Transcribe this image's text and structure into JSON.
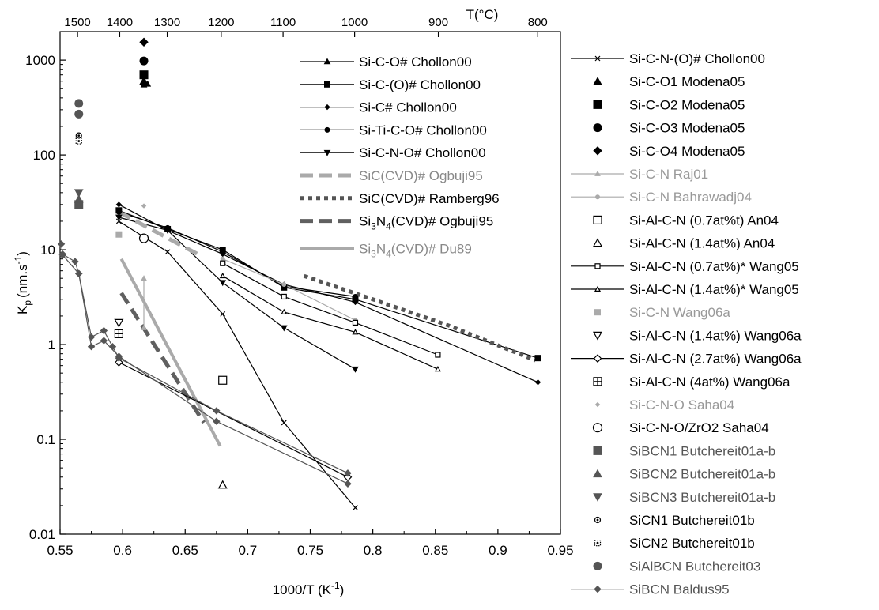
{
  "chart_data": {
    "type": "scatter",
    "xlabel": "1000/T (K",
    "xlabel_sup": "-1",
    "xlabel_end": ")",
    "ylabel": "K",
    "ylabel_sub": "p",
    "ylabel_unit": "(nm.s",
    "ylabel_unit_sup": "-1",
    "ylabel_end": ")",
    "top_axis_title": "T(°C)",
    "xlim": [
      0.55,
      0.95
    ],
    "ylim": [
      0.01,
      2000
    ],
    "yscale": "log",
    "x_ticks": [
      0.55,
      0.6,
      0.65,
      0.7,
      0.75,
      0.8,
      0.85,
      0.9,
      0.95
    ],
    "x_tick_labels": [
      "0.55",
      "0.6",
      "0.65",
      "0.7",
      "0.75",
      "0.8",
      "0.85",
      "0.9",
      "0.95"
    ],
    "y_ticks": [
      0.01,
      0.1,
      1,
      10,
      100,
      1000
    ],
    "y_tick_labels": [
      "0.01",
      "0.1",
      "1",
      "10",
      "100",
      "1000"
    ],
    "top_ticks": [
      1500,
      1400,
      1300,
      1200,
      1100,
      1000,
      900,
      800
    ],
    "top_tick_labels": [
      "1500",
      "1400",
      "1300",
      "1200",
      "1100",
      "1000",
      "900",
      "800"
    ],
    "series": [
      {
        "legend": "inner",
        "label": "Si-C-O# Chollon00",
        "color": "#000000",
        "marker": "tri",
        "msize": 7,
        "line": "solid",
        "lw": 1.2,
        "x": [
          0.617,
          0.62
        ],
        "y": [
          550,
          560
        ]
      },
      {
        "legend": "inner",
        "label": "Si-C-(O)# Chollon00",
        "color": "#000000",
        "marker": "square",
        "msize": 7,
        "line": "solid",
        "lw": 1.2,
        "x": [
          0.597,
          0.636,
          0.68,
          0.729,
          0.786,
          0.932
        ],
        "y": [
          26,
          16.5,
          10,
          4,
          3,
          0.72
        ]
      },
      {
        "legend": "inner",
        "label": "Si-C# Chollon00",
        "color": "#000000",
        "marker": "diamond",
        "msize": 6,
        "line": "solid",
        "lw": 1.2,
        "x": [
          0.597,
          0.636,
          0.68,
          0.729,
          0.786,
          0.932
        ],
        "y": [
          30,
          16,
          9,
          4.3,
          2.8,
          0.4
        ]
      },
      {
        "legend": "inner",
        "label": "Si-Ti-C-O# Chollon00",
        "color": "#000000",
        "marker": "circle",
        "msize": 6,
        "line": "solid",
        "lw": 1.2,
        "x": [
          0.597,
          0.636,
          0.68,
          0.729,
          0.786
        ],
        "y": [
          25,
          17,
          9.5,
          4.1,
          3.2
        ]
      },
      {
        "legend": "inner",
        "label": "Si-C-N-O# Chollon00",
        "color": "#000000",
        "marker": "dtri",
        "msize": 7,
        "line": "solid",
        "lw": 1.2,
        "x": [
          0.597,
          0.636,
          0.68,
          0.729,
          0.786
        ],
        "y": [
          22,
          16,
          4.5,
          1.5,
          0.55
        ]
      },
      {
        "legend": "inner",
        "label": "SiC(CVD)# Ogbuji95",
        "color": "#aaaaaa",
        "marker": "none",
        "line": "dash",
        "lw": 5,
        "text_color": "#888888",
        "x": [
          0.597,
          0.66
        ],
        "y": [
          25,
          9
        ]
      },
      {
        "legend": "inner",
        "label": "SiC(CVD)# Ramberg96",
        "color": "#555555",
        "marker": "none",
        "line": "dot",
        "lw": 5,
        "text_color": "#000000",
        "x": [
          0.745,
          0.8,
          0.86,
          0.93
        ],
        "y": [
          5.3,
          3.0,
          1.6,
          0.68
        ]
      },
      {
        "legend": "inner",
        "label": "Si3N4(CVD)# Ogbuji95",
        "label_parts": [
          "Si",
          "3",
          "N",
          "4",
          "(CVD)# Ogbuji95"
        ],
        "color": "#606060",
        "marker": "none",
        "line": "dash",
        "lw": 5,
        "text_color": "#000000",
        "x": [
          0.599,
          0.665
        ],
        "y": [
          3.5,
          0.15
        ]
      },
      {
        "legend": "inner",
        "label": "Si3N4(CVD)# Du89",
        "label_parts": [
          "Si",
          "3",
          "N",
          "4",
          "(CVD)# Du89"
        ],
        "color": "#aaaaaa",
        "marker": "none",
        "line": "solid",
        "lw": 4,
        "text_color": "#888888",
        "x": [
          0.599,
          0.678
        ],
        "y": [
          8,
          0.085
        ]
      },
      {
        "legend": "outer",
        "label": "Si-C-N-(O)# Chollon00",
        "color": "#000000",
        "marker": "x",
        "msize": 6,
        "line": "solid",
        "lw": 1.2,
        "x": [
          0.597,
          0.636,
          0.68,
          0.729,
          0.786
        ],
        "y": [
          20,
          9.5,
          2.1,
          0.15,
          0.019
        ]
      },
      {
        "legend": "outer",
        "label": "Si-C-O1 Modena05",
        "color": "#000000",
        "marker": "tri",
        "msize": 10,
        "line": "none",
        "x": [
          0.617
        ],
        "y": [
          600
        ]
      },
      {
        "legend": "outer",
        "label": "Si-C-O2 Modena05",
        "color": "#000000",
        "marker": "square",
        "msize": 10,
        "line": "none",
        "x": [
          0.617
        ],
        "y": [
          700
        ]
      },
      {
        "legend": "outer",
        "label": "Si-C-O3 Modena05",
        "color": "#000000",
        "marker": "circle",
        "msize": 10,
        "line": "none",
        "x": [
          0.617
        ],
        "y": [
          980
        ]
      },
      {
        "legend": "outer",
        "label": "Si-C-O4 Modena05",
        "color": "#000000",
        "marker": "diamond",
        "msize": 10,
        "line": "none",
        "x": [
          0.617
        ],
        "y": [
          1550
        ]
      },
      {
        "legend": "outer",
        "label": "Si-C-N Raj01",
        "color": "#aaaaaa",
        "marker": "tri",
        "msize": 6,
        "line": "solid",
        "lw": 1.2,
        "text_color": "#999999",
        "x": [
          0.617,
          0.617
        ],
        "y": [
          5,
          1.5
        ]
      },
      {
        "legend": "outer",
        "label": "Si-C-N Bahrawadj04",
        "color": "#aaaaaa",
        "marker": "circle",
        "msize": 5,
        "line": "solid",
        "lw": 1.2,
        "text_color": "#999999",
        "x": [
          0.68,
          0.729,
          0.786
        ],
        "y": [
          8,
          4.3,
          1.8
        ]
      },
      {
        "legend": "outer",
        "label": "Si-Al-C-N (0.7at%t) An04",
        "color": "#000000",
        "marker": "osquare",
        "msize": 10,
        "line": "none",
        "x": [
          0.68
        ],
        "y": [
          0.42
        ]
      },
      {
        "legend": "outer",
        "label": "Si-Al-C-N (1.4at%) An04",
        "color": "#000000",
        "marker": "otri",
        "msize": 10,
        "line": "none",
        "x": [
          0.68
        ],
        "y": [
          0.033
        ]
      },
      {
        "legend": "outer",
        "label": "Si-Al-C-N (0.7at%)* Wang05",
        "color": "#000000",
        "marker": "osquare",
        "msize": 6,
        "line": "solid",
        "lw": 1.2,
        "x": [
          0.68,
          0.729,
          0.786,
          0.852
        ],
        "y": [
          7.2,
          3.2,
          1.7,
          0.78
        ]
      },
      {
        "legend": "outer",
        "label": "Si-Al-C-N (1.4at%)* Wang05",
        "color": "#000000",
        "marker": "otri",
        "msize": 6,
        "line": "solid",
        "lw": 1.2,
        "x": [
          0.68,
          0.729,
          0.786,
          0.852
        ],
        "y": [
          5.3,
          2.2,
          1.35,
          0.55
        ]
      },
      {
        "legend": "outer",
        "label": "Si-C-N Wang06a",
        "color": "#aaaaaa",
        "marker": "square",
        "msize": 7,
        "line": "none",
        "text_color": "#999999",
        "x": [
          0.597
        ],
        "y": [
          14.5
        ]
      },
      {
        "legend": "outer",
        "label": "Si-Al-C-N (1.4at%) Wang06a",
        "color": "#000000",
        "marker": "odtri",
        "msize": 10,
        "line": "none",
        "x": [
          0.597
        ],
        "y": [
          1.7
        ]
      },
      {
        "legend": "outer",
        "label": "Si-Al-C-N (2.7at%) Wang06a",
        "color": "#000000",
        "marker": "odiamond",
        "msize": 9,
        "line": "solid",
        "lw": 1.2,
        "x": [
          0.597,
          0.78
        ],
        "y": [
          0.65,
          0.04
        ]
      },
      {
        "legend": "outer",
        "label": "Si-Al-C-N (4at%) Wang06a",
        "color": "#000000",
        "marker": "plussquare",
        "msize": 10,
        "line": "none",
        "x": [
          0.597
        ],
        "y": [
          1.3
        ]
      },
      {
        "legend": "outer",
        "label": "Si-C-N-O Saha04",
        "color": "#aaaaaa",
        "marker": "diamond",
        "msize": 5,
        "line": "none",
        "text_color": "#999999",
        "x": [
          0.617
        ],
        "y": [
          29
        ]
      },
      {
        "legend": "outer",
        "label": "Si-C-N-O/ZrO2 Saha04",
        "color": "#000000",
        "marker": "ocircle",
        "msize": 11,
        "line": "none",
        "x": [
          0.617
        ],
        "y": [
          13.2
        ]
      },
      {
        "legend": "outer",
        "label": "SiBCN1 Butchereit01a-b",
        "color": "#555555",
        "marker": "square",
        "msize": 10,
        "line": "none",
        "text_color": "#555555",
        "x": [
          0.565
        ],
        "y": [
          30
        ]
      },
      {
        "legend": "outer",
        "label": "SiBCN2 Butchereit01a-b",
        "color": "#555555",
        "marker": "tri",
        "msize": 10,
        "line": "none",
        "text_color": "#555555",
        "x": [
          0.565
        ],
        "y": [
          34
        ]
      },
      {
        "legend": "outer",
        "label": "SiBCN3 Butchereit01a-b",
        "color": "#555555",
        "marker": "dtri",
        "msize": 10,
        "line": "none",
        "text_color": "#555555",
        "x": [
          0.565
        ],
        "y": [
          40
        ]
      },
      {
        "legend": "outer",
        "label": "SiCN1 Butchereit01b",
        "color": "#000000",
        "marker": "dotcircle",
        "msize": 7,
        "line": "none",
        "x": [
          0.565
        ],
        "y": [
          160
        ]
      },
      {
        "legend": "outer",
        "label": "SiCN2 Butchereit01b",
        "color": "#000000",
        "marker": "dotsquare",
        "msize": 7,
        "line": "none",
        "x": [
          0.565
        ],
        "y": [
          140
        ]
      },
      {
        "legend": "outer",
        "label": "SiAlBCN Butchereit03",
        "color": "#555555",
        "marker": "circle",
        "msize": 10,
        "line": "none",
        "text_color": "#555555",
        "x": [
          0.565,
          0.565
        ],
        "y": [
          350,
          270
        ]
      },
      {
        "legend": "outer",
        "label": "SiBCN Baldus95",
        "color": "#555555",
        "marker": "diamond",
        "msize": 8,
        "line": "solid",
        "lw": 1.2,
        "text_color": "#555555",
        "x": [
          0.551,
          0.552,
          0.562,
          0.565,
          0.575,
          0.585,
          0.592,
          0.597,
          0.675,
          0.78
        ],
        "y": [
          11.5,
          9,
          7.5,
          5.6,
          1.2,
          1.4,
          0.95,
          0.72,
          0.2,
          0.044
        ]
      },
      {
        "legend": "none",
        "label": "",
        "color": "#555555",
        "marker": "diamond",
        "msize": 8,
        "line": "solid",
        "lw": 1.2,
        "x": [
          0.552,
          0.565,
          0.575,
          0.585,
          0.597,
          0.675,
          0.78
        ],
        "y": [
          8.8,
          5.6,
          0.95,
          1.1,
          0.75,
          0.155,
          0.034
        ]
      },
      {
        "legend": "none",
        "label": "",
        "color": "#555555",
        "marker": "diamond",
        "msize": 8,
        "line": "none",
        "x": [
          0.565
        ],
        "y": [
          5.6
        ]
      }
    ]
  }
}
